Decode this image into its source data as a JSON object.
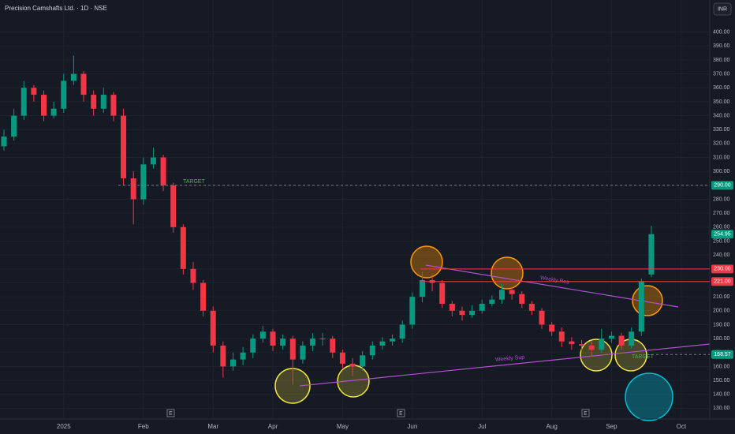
{
  "chart_data": {
    "type": "candlestick",
    "title": "Precision Camshafts Ltd. · 1D · NSE",
    "currency": "INR",
    "up_color": "#089981",
    "down_color": "#f23645",
    "categories": [
      null,
      null,
      null,
      null,
      null,
      null,
      "2025",
      null,
      null,
      null,
      null,
      null,
      null,
      null,
      "Feb",
      null,
      null,
      null,
      null,
      null,
      null,
      "Mar",
      null,
      null,
      null,
      null,
      null,
      "Apr",
      null,
      null,
      null,
      null,
      null,
      null,
      "May",
      null,
      null,
      null,
      null,
      null,
      null,
      "Jun",
      null,
      null,
      null,
      null,
      null,
      null,
      "Jul",
      null,
      null,
      null,
      null,
      null,
      null,
      "Aug",
      null,
      null,
      null,
      null,
      null,
      "Sep",
      null,
      null,
      null,
      null,
      null,
      null,
      "Oct"
    ],
    "open": [
      318,
      325,
      340,
      360,
      355,
      340,
      345,
      365,
      370,
      355,
      345,
      355,
      340,
      295,
      280,
      305,
      310,
      290,
      260,
      230,
      220,
      200,
      175,
      160,
      165,
      170,
      180,
      185,
      175,
      180,
      165,
      175,
      180,
      180,
      170,
      162,
      160,
      168,
      175,
      178,
      180,
      190,
      210,
      222,
      220,
      205,
      200,
      197,
      200,
      205,
      208,
      215,
      212,
      205,
      200,
      190,
      185,
      178,
      176,
      175,
      172,
      180,
      182,
      175,
      185,
      226,
      null,
      null,
      null
    ],
    "high": [
      330,
      345,
      365,
      362,
      358,
      350,
      370,
      383,
      372,
      358,
      360,
      357,
      345,
      300,
      310,
      317,
      312,
      292,
      262,
      235,
      222,
      203,
      178,
      170,
      174,
      183,
      189,
      187,
      183,
      182,
      178,
      184,
      184,
      182,
      172,
      166,
      171,
      178,
      181,
      183,
      193,
      213,
      228,
      226,
      222,
      207,
      203,
      204,
      208,
      211,
      219,
      217,
      214,
      207,
      202,
      192,
      188,
      181,
      179,
      178,
      187,
      185,
      184,
      188,
      223,
      261,
      null,
      null,
      null
    ],
    "low": [
      315,
      322,
      337,
      350,
      336,
      338,
      342,
      362,
      350,
      340,
      342,
      336,
      290,
      262,
      276,
      302,
      286,
      256,
      226,
      215,
      196,
      170,
      152,
      157,
      161,
      166,
      177,
      171,
      172,
      147,
      162,
      171,
      175,
      166,
      158,
      153,
      157,
      165,
      172,
      175,
      177,
      187,
      206,
      214,
      202,
      196,
      193,
      195,
      198,
      203,
      205,
      208,
      202,
      197,
      187,
      182,
      174,
      172,
      171,
      168,
      170,
      177,
      172,
      173,
      182,
      224,
      null,
      null,
      null
    ],
    "close": [
      325,
      340,
      360,
      355,
      340,
      345,
      365,
      370,
      355,
      345,
      355,
      340,
      295,
      280,
      305,
      310,
      290,
      260,
      230,
      220,
      200,
      175,
      160,
      165,
      170,
      180,
      185,
      175,
      180,
      165,
      175,
      180,
      180,
      170,
      162,
      160,
      168,
      175,
      178,
      180,
      190,
      210,
      222,
      220,
      205,
      200,
      197,
      200,
      205,
      208,
      215,
      212,
      205,
      200,
      190,
      185,
      178,
      176,
      175,
      172,
      180,
      182,
      175,
      185,
      221,
      254.95,
      null,
      null,
      null
    ],
    "ylim": [
      124,
      423
    ],
    "yticks": [
      {
        "value": 130,
        "label": "130.00"
      },
      {
        "value": 140,
        "label": "140.00"
      },
      {
        "value": 150,
        "label": "150.00"
      },
      {
        "value": 160,
        "label": "160.00"
      },
      {
        "value": 170,
        "label": "170.00"
      },
      {
        "value": 180,
        "label": "180.00"
      },
      {
        "value": 190,
        "label": "190.00"
      },
      {
        "value": 200,
        "label": "200.00"
      },
      {
        "value": 210,
        "label": "210.00"
      },
      {
        "value": 220,
        "label": "220.00"
      },
      {
        "value": 230,
        "label": "230.00"
      },
      {
        "value": 240,
        "label": "240.00"
      },
      {
        "value": 250,
        "label": "250.00"
      },
      {
        "value": 260,
        "label": "260.00"
      },
      {
        "value": 270,
        "label": "270.00"
      },
      {
        "value": 280,
        "label": "280.00"
      },
      {
        "value": 290,
        "label": "290.00"
      },
      {
        "value": 300,
        "label": "300.00"
      },
      {
        "value": 310,
        "label": "310.00"
      },
      {
        "value": 320,
        "label": "320.00"
      },
      {
        "value": 330,
        "label": "330.00"
      },
      {
        "value": 340,
        "label": "340.00"
      },
      {
        "value": 350,
        "label": "350.00"
      },
      {
        "value": 360,
        "label": "360.00"
      },
      {
        "value": 370,
        "label": "370.00"
      },
      {
        "value": 380,
        "label": "380.00"
      },
      {
        "value": 390,
        "label": "390.00"
      },
      {
        "value": 400,
        "label": "400.00"
      }
    ],
    "price_lines": [
      {
        "value": 290,
        "label": "290.00",
        "color": "#089981"
      },
      {
        "value": 254.95,
        "label": "254.95",
        "color": "#089981"
      },
      {
        "value": 230,
        "label": "230.00",
        "color": "#f23645"
      },
      {
        "value": 221,
        "label": "221.00",
        "color": "#f23645"
      },
      {
        "value": 168.57,
        "label": "168.57",
        "color": "#089981"
      }
    ],
    "annotations": [
      "TARGET",
      "Weekly Res",
      "Weekly Sup",
      "TARGET"
    ],
    "earnings_markers": [
      "E",
      "E",
      "E"
    ],
    "grid": true
  }
}
